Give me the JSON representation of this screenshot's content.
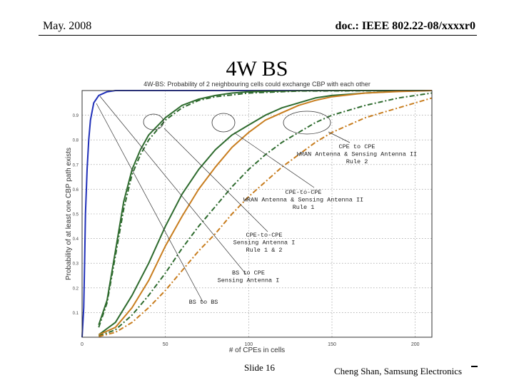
{
  "header": {
    "date": "May. 2008",
    "doc": "doc.: IEEE 802.22-08/xxxxr0"
  },
  "slide": {
    "title": "4W BS"
  },
  "footer": {
    "slide_number": "Slide 16",
    "author": "Cheng Shan, Samsung Electronics"
  },
  "chart_data": {
    "type": "line",
    "title": "4W-BS: Probability of 2 neighbouring cells could exchange CBP with each other",
    "xlabel": "# of CPEs in cells",
    "ylabel": "Probability of at least one CBP path exists",
    "xlim": [
      0,
      210
    ],
    "ylim": [
      0,
      1
    ],
    "xticks": [
      0,
      50,
      100,
      150,
      200
    ],
    "yticks": [
      0.1,
      0.2,
      0.3,
      0.4,
      0.5,
      0.6,
      0.7,
      0.8,
      0.9
    ],
    "grid": true,
    "series": [
      {
        "name": "BS to BS",
        "color": "#1f2fb8",
        "style": "solid",
        "x": [
          0,
          1,
          1.5,
          2,
          3,
          4,
          5,
          7,
          10,
          15,
          20,
          210
        ],
        "y": [
          0,
          0.12,
          0.3,
          0.5,
          0.68,
          0.8,
          0.88,
          0.95,
          0.98,
          0.995,
          1,
          1
        ]
      },
      {
        "name": "BS to CPE Sensing Antenna I",
        "color": "#2e6b2e",
        "style": "solid",
        "x": [
          10,
          15,
          20,
          25,
          30,
          35,
          40,
          50,
          60,
          70,
          80,
          90,
          100,
          130,
          160,
          210
        ],
        "y": [
          0.05,
          0.15,
          0.35,
          0.55,
          0.68,
          0.76,
          0.82,
          0.89,
          0.94,
          0.965,
          0.98,
          0.99,
          0.995,
          0.999,
          1,
          1
        ]
      },
      {
        "name": "BS to CPE Sensing Antenna I (dash-dot)",
        "color": "#2e6b2e",
        "style": "dashdot",
        "x": [
          10,
          15,
          20,
          25,
          30,
          35,
          40,
          50,
          60,
          70,
          80,
          100,
          130,
          210
        ],
        "y": [
          0.04,
          0.14,
          0.33,
          0.52,
          0.66,
          0.74,
          0.8,
          0.88,
          0.93,
          0.96,
          0.975,
          0.99,
          0.998,
          1
        ]
      },
      {
        "name": "CPE-to-CPE Sensing Antenna I Rule 1 & 2",
        "color": "#2e6b2e",
        "style": "solid",
        "x": [
          10,
          20,
          30,
          40,
          50,
          60,
          70,
          80,
          90,
          100,
          110,
          120,
          130,
          140,
          150,
          170,
          190,
          210
        ],
        "y": [
          0.01,
          0.06,
          0.17,
          0.3,
          0.45,
          0.58,
          0.68,
          0.76,
          0.82,
          0.86,
          0.9,
          0.93,
          0.95,
          0.97,
          0.98,
          0.99,
          0.997,
          1
        ]
      },
      {
        "name": "CPE-to-CPE Sensing Antenna I (orange)",
        "color": "#c87d1e",
        "style": "solid",
        "x": [
          10,
          20,
          30,
          40,
          50,
          60,
          70,
          80,
          90,
          100,
          110,
          120,
          130,
          140,
          150,
          170,
          190,
          210
        ],
        "y": [
          0.01,
          0.04,
          0.12,
          0.23,
          0.37,
          0.49,
          0.6,
          0.69,
          0.77,
          0.83,
          0.88,
          0.91,
          0.94,
          0.96,
          0.975,
          0.99,
          0.996,
          1
        ]
      },
      {
        "name": "CPE-to-CPE WRAN Antenna & Sensing Antenna II Rule 1",
        "color": "#2e6b2e",
        "style": "dashdot",
        "x": [
          10,
          20,
          30,
          40,
          50,
          60,
          70,
          80,
          90,
          100,
          110,
          120,
          130,
          140,
          150,
          160,
          170,
          180,
          190,
          200,
          210
        ],
        "y": [
          0.005,
          0.03,
          0.09,
          0.17,
          0.26,
          0.36,
          0.45,
          0.53,
          0.61,
          0.68,
          0.74,
          0.79,
          0.83,
          0.87,
          0.9,
          0.92,
          0.94,
          0.955,
          0.97,
          0.98,
          0.99
        ]
      },
      {
        "name": "CPE to CPE WRAN Antenna & Sensing Antenna II Rule 2",
        "color": "#c87d1e",
        "style": "dashdot",
        "x": [
          10,
          20,
          30,
          40,
          50,
          60,
          70,
          80,
          90,
          100,
          110,
          120,
          130,
          140,
          150,
          160,
          170,
          180,
          190,
          200,
          210
        ],
        "y": [
          0.003,
          0.02,
          0.06,
          0.12,
          0.19,
          0.27,
          0.35,
          0.42,
          0.5,
          0.57,
          0.63,
          0.69,
          0.74,
          0.79,
          0.83,
          0.86,
          0.89,
          0.91,
          0.93,
          0.95,
          0.97
        ]
      }
    ],
    "annotations": [
      {
        "lines": [
          "CPE to CPE",
          "WRAN Antenna & Sensing Antenna II",
          "Rule 2"
        ]
      },
      {
        "lines": [
          "CPE-to-CPE",
          "WRAN Antenna & Sensing Antenna II",
          "Rule 1"
        ]
      },
      {
        "lines": [
          "CPE-to-CPE",
          "Sensing Antenna I",
          "Rule 1 & 2"
        ]
      },
      {
        "lines": [
          "BS to CPE",
          "Sensing Antenna I"
        ]
      },
      {
        "lines": [
          "BS to BS"
        ]
      }
    ]
  }
}
